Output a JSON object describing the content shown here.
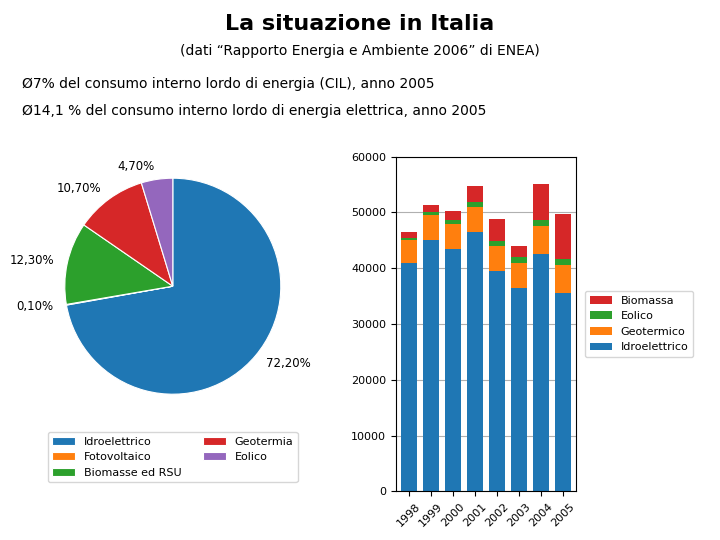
{
  "title": "La situazione in Italia",
  "subtitle": "(dati “Rapporto Energia e Ambiente 2006” di ENEA)",
  "annotations": [
    "Ø7% del consumo interno lordo di energia (CIL), anno 2005",
    "Ø14,1 % del consumo interno lordo di energia elettrica, anno 2005"
  ],
  "chart_data": [
    {
      "type": "pie",
      "categories": [
        "Idroelettrico",
        "Fotovoltaico",
        "Biomasse ed RSU",
        "Geotermia",
        "Eolico"
      ],
      "values": [
        72.2,
        0.1,
        12.3,
        10.7,
        4.7
      ],
      "value_labels": [
        "72,20%",
        "0,10%",
        "12,30%",
        "10,70%",
        "4,70%"
      ],
      "data_labels": true,
      "legend": "upper center"
    },
    {
      "type": "bar",
      "stacked": true,
      "categories": [
        "1998",
        "1999",
        "2000",
        "2001",
        "2002",
        "2003",
        "2004",
        "2005"
      ],
      "series": [
        {
          "name": "Idroelettrico",
          "values": [
            41000,
            45000,
            43500,
            46500,
            39500,
            36500,
            42500,
            35500
          ]
        },
        {
          "name": "Geotermico",
          "values": [
            4000,
            4500,
            4500,
            4500,
            4500,
            4500,
            5000,
            5000
          ]
        },
        {
          "name": "Eolico",
          "values": [
            500,
            600,
            700,
            800,
            900,
            1000,
            1100,
            1200
          ]
        },
        {
          "name": "Biomassa",
          "values": [
            1000,
            1300,
            1500,
            3000,
            4000,
            2000,
            6500,
            8000
          ]
        }
      ],
      "ylim": [
        0,
        60000
      ],
      "yticks": [
        0,
        10000,
        20000,
        30000,
        40000,
        50000,
        60000
      ],
      "grid": true,
      "legend": "center left"
    }
  ]
}
